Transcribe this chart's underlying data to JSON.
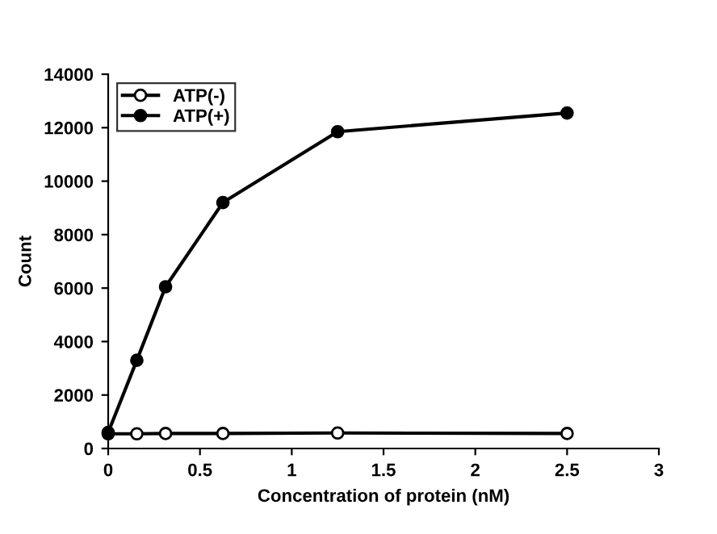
{
  "chart_data": {
    "type": "line",
    "xlabel": "Concentration of protein (nM)",
    "ylabel": "Count",
    "xlim": [
      0,
      3
    ],
    "xticks": [
      0,
      0.5,
      1,
      1.5,
      2,
      2.5,
      3
    ],
    "ylim": [
      0,
      14000
    ],
    "yticks": [
      0,
      2000,
      4000,
      6000,
      8000,
      10000,
      12000,
      14000
    ],
    "x": [
      0,
      0.156,
      0.3125,
      0.625,
      1.25,
      2.5
    ],
    "series": [
      {
        "name": "ATP(-)",
        "color": "#000000",
        "values": [
          550,
          550,
          560,
          560,
          580,
          560
        ]
      },
      {
        "name": "ATP(+)",
        "color": "#000000",
        "values": [
          600,
          3300,
          6050,
          9200,
          11850,
          12550
        ]
      }
    ],
    "marker": "circle",
    "line_style": "solid",
    "grid": false,
    "legend": "top left"
  }
}
